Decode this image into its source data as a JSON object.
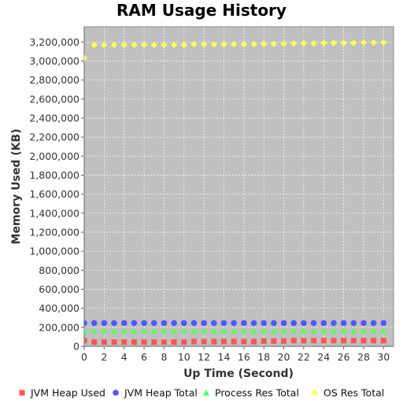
{
  "chart_data": {
    "type": "scatter",
    "title": "RAM Usage History",
    "xlabel": "Up Time (Second)",
    "ylabel": "Memory Used (KB)",
    "xlim": [
      0,
      31
    ],
    "ylim": [
      0,
      3360000
    ],
    "x_ticks": [
      0,
      2,
      4,
      6,
      8,
      10,
      12,
      14,
      16,
      18,
      20,
      22,
      24,
      26,
      28,
      30
    ],
    "y_ticks": [
      0,
      200000,
      400000,
      600000,
      800000,
      1000000,
      1200000,
      1400000,
      1600000,
      1800000,
      2000000,
      2200000,
      2400000,
      2600000,
      2800000,
      3000000,
      3200000
    ],
    "x_tick_labels": [
      "0",
      "2",
      "4",
      "6",
      "8",
      "10",
      "12",
      "14",
      "16",
      "18",
      "20",
      "22",
      "24",
      "26",
      "28",
      "30"
    ],
    "y_tick_labels": [
      "0",
      "200,000",
      "400,000",
      "600,000",
      "800,000",
      "1,000,000",
      "1,200,000",
      "1,400,000",
      "1,600,000",
      "1,800,000",
      "2,000,000",
      "2,200,000",
      "2,400,000",
      "2,600,000",
      "2,800,000",
      "3,000,000",
      "3,200,000"
    ],
    "grid": true,
    "plot_background": "#c0c0c0",
    "legend_position": "bottom",
    "x": [
      0,
      1,
      2,
      3,
      4,
      5,
      6,
      7,
      8,
      9,
      10,
      11,
      12,
      13,
      14,
      15,
      16,
      17,
      18,
      19,
      20,
      21,
      22,
      23,
      24,
      25,
      26,
      27,
      28,
      29,
      30
    ],
    "series": [
      {
        "name": "JVM Heap Used",
        "color": "#ff5555",
        "marker": "square",
        "values": [
          60000,
          45000,
          45000,
          45000,
          45000,
          45000,
          45000,
          45000,
          45000,
          45000,
          45000,
          50000,
          50000,
          50000,
          50000,
          50000,
          50000,
          50000,
          55000,
          55000,
          55000,
          60000,
          60000,
          60000,
          60000,
          60000,
          60000,
          60000,
          60000,
          60000,
          60000
        ]
      },
      {
        "name": "JVM Heap Total",
        "color": "#5555ff",
        "marker": "circle",
        "values": [
          245000,
          245000,
          245000,
          245000,
          245000,
          245000,
          245000,
          245000,
          245000,
          245000,
          245000,
          245000,
          245000,
          245000,
          245000,
          245000,
          245000,
          245000,
          245000,
          245000,
          245000,
          245000,
          245000,
          245000,
          245000,
          245000,
          245000,
          245000,
          245000,
          245000,
          245000
        ]
      },
      {
        "name": "Process Res Total",
        "color": "#55ff55",
        "marker": "triangle",
        "values": [
          165000,
          165000,
          165000,
          165000,
          165000,
          165000,
          165000,
          165000,
          165000,
          165000,
          165000,
          165000,
          165000,
          165000,
          165000,
          165000,
          165000,
          165000,
          165000,
          165000,
          165000,
          165000,
          165000,
          165000,
          165000,
          165000,
          165000,
          165000,
          165000,
          165000,
          165000
        ]
      },
      {
        "name": "OS Res Total",
        "color": "#ffff55",
        "marker": "diamond",
        "values": [
          3030000,
          3170000,
          3170000,
          3170000,
          3170000,
          3170000,
          3170000,
          3170000,
          3170000,
          3170000,
          3170000,
          3175000,
          3175000,
          3175000,
          3175000,
          3175000,
          3175000,
          3175000,
          3180000,
          3180000,
          3180000,
          3185000,
          3185000,
          3185000,
          3190000,
          3190000,
          3190000,
          3190000,
          3195000,
          3195000,
          3195000
        ]
      }
    ]
  }
}
